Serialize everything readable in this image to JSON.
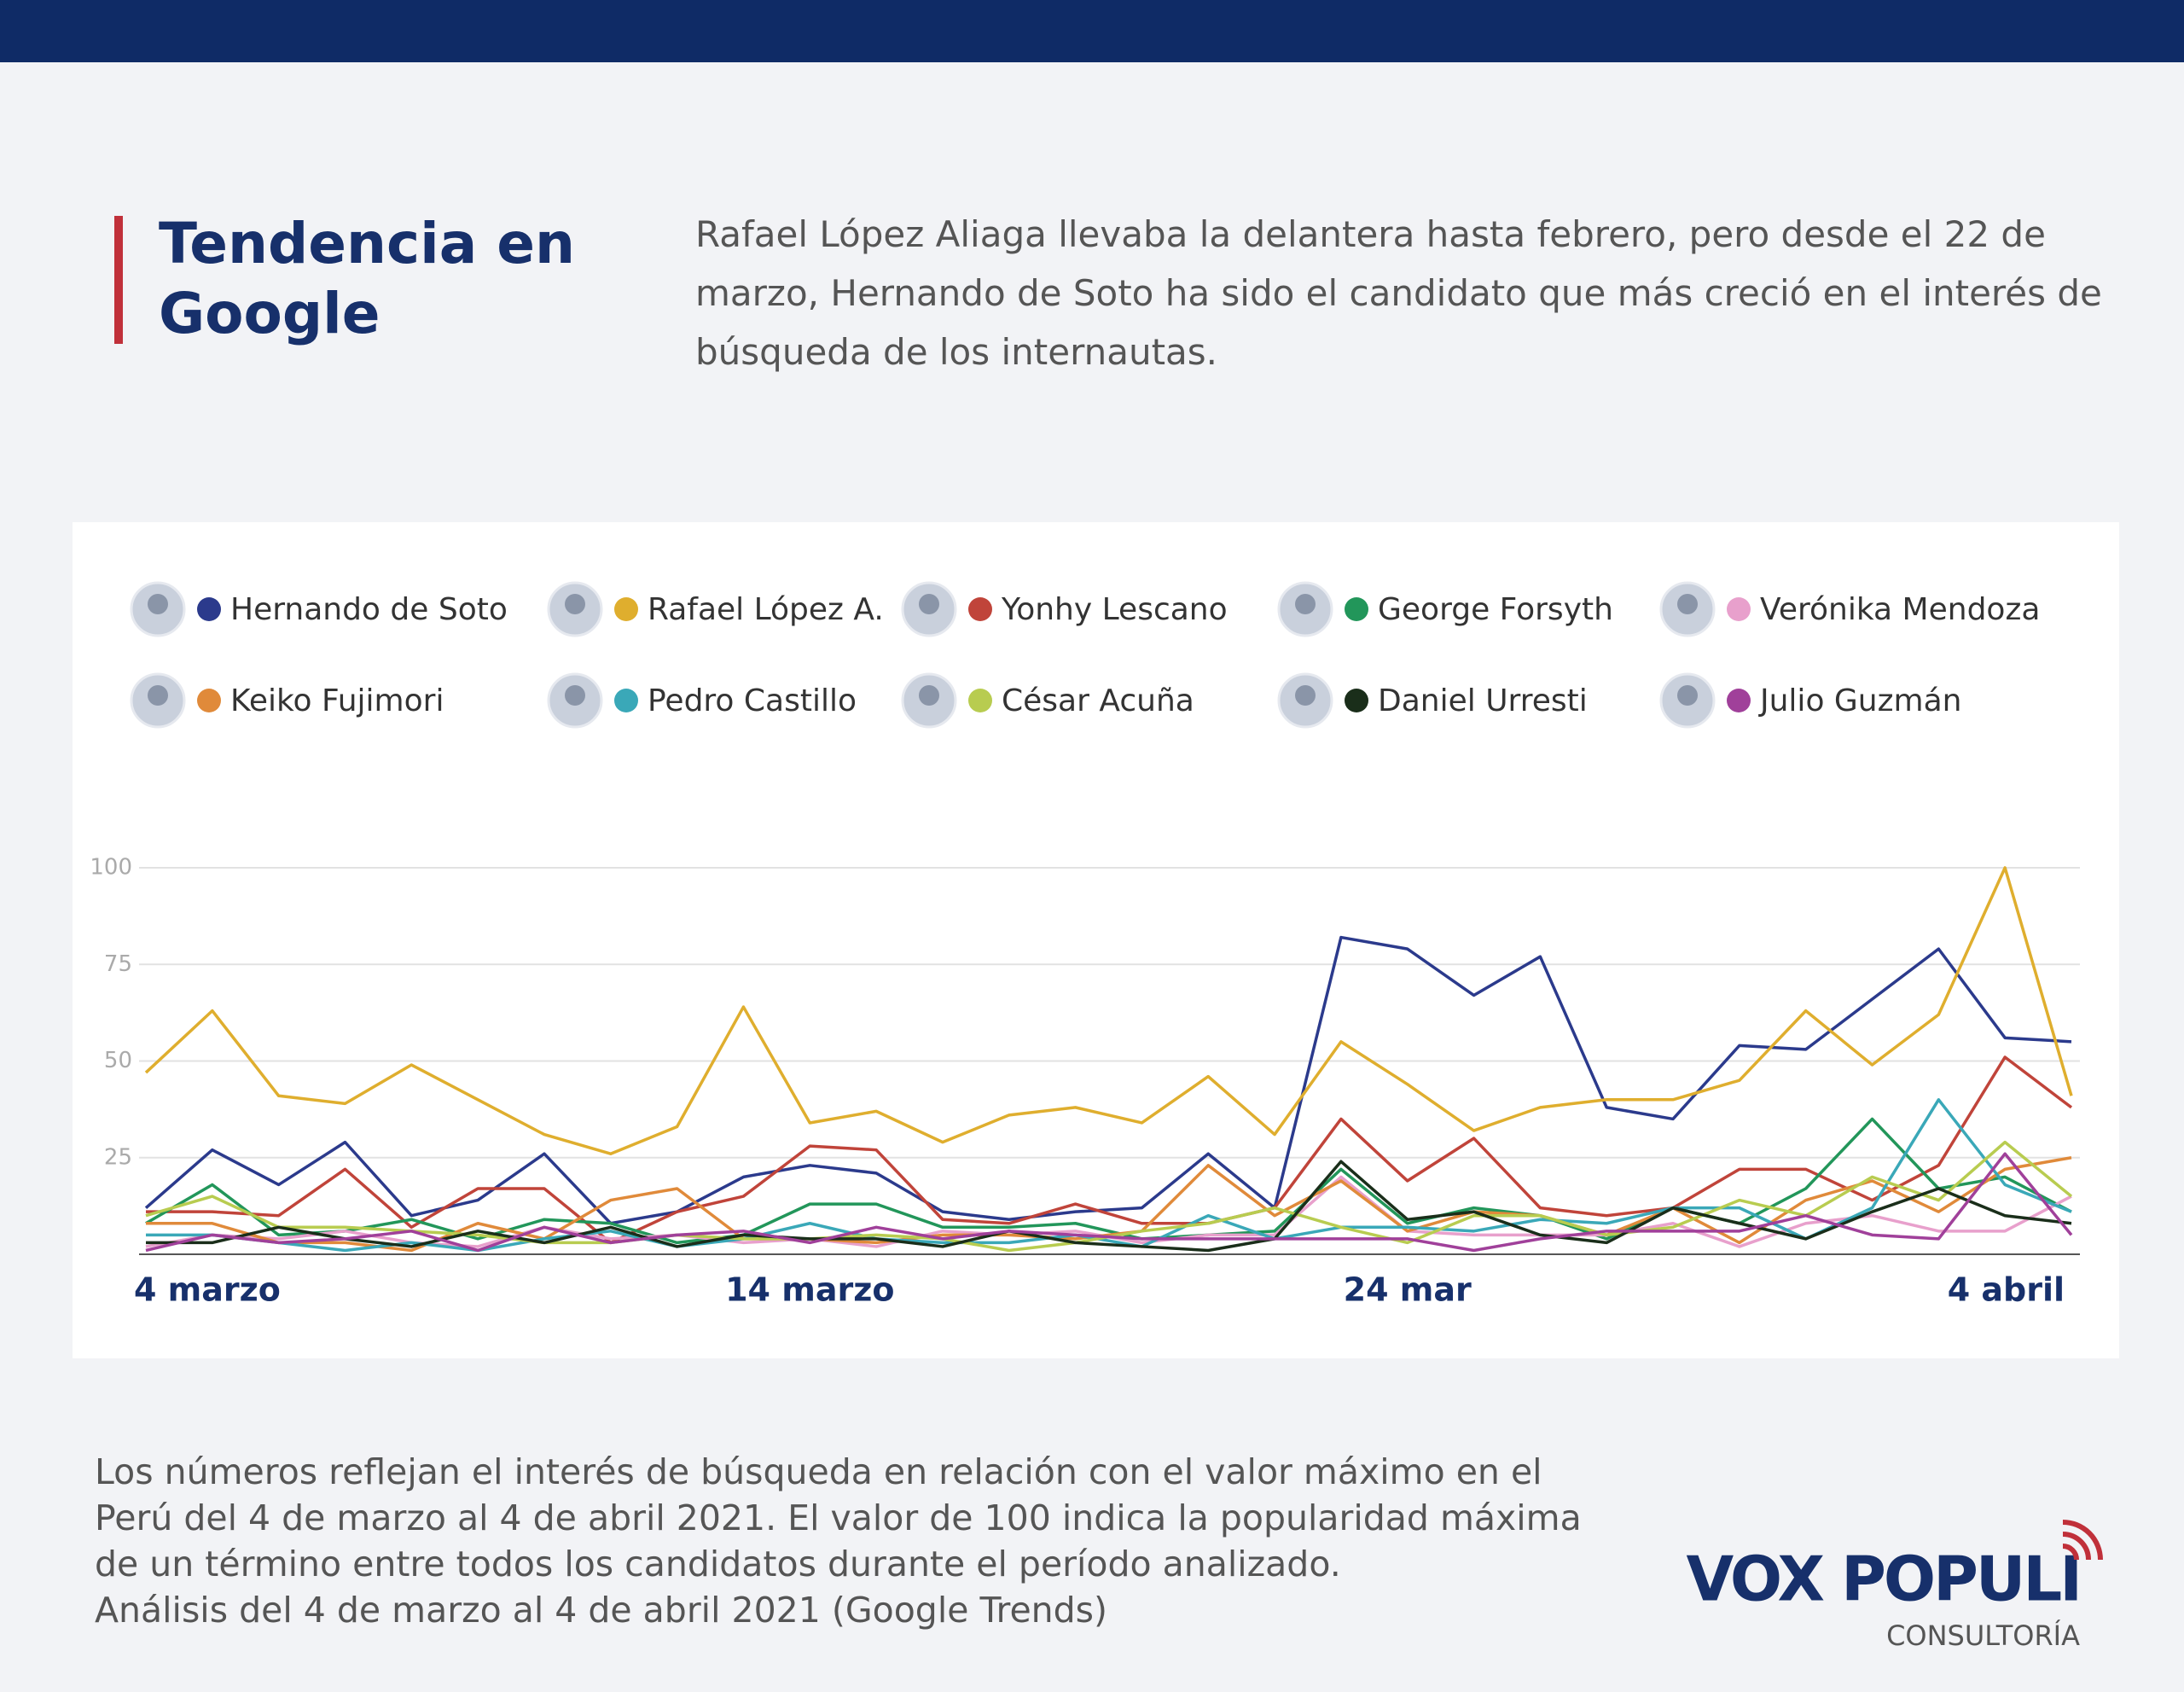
{
  "chart_data": {
    "type": "line",
    "title": "Tendencia en Google",
    "subtitle": "Rafael López Aliaga llevaba la delantera hasta febrero, pero desde el 22 de marzo, Hernando de Soto ha sido el candidato que más creció en el interés de búsqueda de los internautas.",
    "categories": [
      "4 marzo",
      null,
      null,
      null,
      null,
      null,
      null,
      null,
      null,
      null,
      "14 marzo",
      null,
      null,
      null,
      null,
      null,
      null,
      null,
      null,
      "24 mar",
      null,
      null,
      null,
      null,
      null,
      null,
      null,
      null,
      null,
      "4 abril"
    ],
    "series": [
      {
        "name": "Hernando de Soto",
        "color": "#2b3a8c",
        "values": [
          12,
          27,
          18,
          29,
          10,
          14,
          26,
          8,
          11,
          20,
          23,
          21,
          11,
          9,
          11,
          12,
          26,
          12,
          82,
          79,
          67,
          77,
          38,
          35,
          54,
          53,
          66,
          79,
          56,
          55
        ]
      },
      {
        "name": "Rafael López A.",
        "color": "#dfae2e",
        "values": [
          47,
          63,
          41,
          39,
          49,
          40,
          31,
          26,
          33,
          64,
          34,
          37,
          29,
          36,
          38,
          34,
          46,
          31,
          55,
          44,
          32,
          38,
          40,
          40,
          45,
          63,
          49,
          62,
          100,
          41
        ]
      },
      {
        "name": "Yonhy Lescano",
        "color": "#c0443a",
        "values": [
          11,
          11,
          10,
          22,
          7,
          17,
          17,
          3,
          11,
          15,
          28,
          27,
          9,
          8,
          13,
          8,
          8,
          12,
          35,
          19,
          30,
          12,
          10,
          12,
          22,
          22,
          14,
          23,
          51,
          38
        ]
      },
      {
        "name": "George Forsyth",
        "color": "#22965a",
        "values": [
          8,
          18,
          5,
          6,
          9,
          4,
          9,
          8,
          3,
          5,
          13,
          13,
          7,
          7,
          8,
          4,
          5,
          6,
          22,
          8,
          12,
          10,
          4,
          12,
          8,
          17,
          35,
          17,
          20,
          11
        ]
      },
      {
        "name": "Verónika Mendoza",
        "color": "#e8a0cc",
        "values": [
          2,
          5,
          4,
          6,
          3,
          2,
          7,
          4,
          5,
          3,
          4,
          2,
          6,
          5,
          6,
          3,
          5,
          5,
          20,
          6,
          5,
          5,
          5,
          8,
          2,
          8,
          10,
          6,
          6,
          15
        ]
      },
      {
        "name": "Keiko Fujimori",
        "color": "#e08a3a",
        "values": [
          8,
          8,
          3,
          3,
          1,
          8,
          4,
          14,
          17,
          4,
          4,
          3,
          5,
          5,
          4,
          6,
          23,
          10,
          19,
          6,
          11,
          10,
          5,
          12,
          3,
          14,
          19,
          11,
          22,
          25
        ]
      },
      {
        "name": "Pedro Castillo",
        "color": "#3aa8b8",
        "values": [
          5,
          5,
          3,
          1,
          3,
          1,
          4,
          6,
          2,
          4,
          8,
          4,
          3,
          3,
          5,
          2,
          10,
          4,
          7,
          7,
          6,
          9,
          8,
          12,
          12,
          4,
          12,
          40,
          18,
          11
        ]
      },
      {
        "name": "César Acuña",
        "color": "#b8cc50",
        "values": [
          10,
          15,
          7,
          7,
          6,
          5,
          3,
          3,
          5,
          4,
          4,
          5,
          4,
          1,
          3,
          6,
          8,
          12,
          7,
          3,
          10,
          10,
          5,
          7,
          14,
          10,
          20,
          14,
          29,
          15
        ]
      },
      {
        "name": "Daniel Urresti",
        "color": "#1a2e1a",
        "values": [
          3,
          3,
          7,
          4,
          2,
          6,
          3,
          7,
          2,
          5,
          4,
          4,
          2,
          6,
          3,
          2,
          1,
          4,
          24,
          9,
          11,
          5,
          3,
          12,
          8,
          4,
          11,
          17,
          10,
          8
        ]
      },
      {
        "name": "Julio Guzmán",
        "color": "#a0409a",
        "values": [
          1,
          5,
          3,
          4,
          6,
          1,
          7,
          3,
          5,
          6,
          3,
          7,
          4,
          6,
          5,
          4,
          4,
          4,
          4,
          4,
          1,
          4,
          6,
          6,
          6,
          10,
          5,
          4,
          26,
          5
        ]
      }
    ],
    "ylim": [
      0,
      100
    ],
    "yticks": [
      25,
      50,
      75,
      100
    ],
    "grid": true,
    "note": "Los números reflejan el interés de búsqueda en relación con el valor máximo en el Perú del 4 de marzo al 4 de abril 2021. El valor de 100 indica la popularidad máxima de un término entre todos los candidatos durante el período analizado.",
    "source": "Análisis del 4 de marzo al 4 de abril 2021 (Google Trends)",
    "brand": "VOX POPULI",
    "brand_sub": "CONSULTORÍA"
  }
}
